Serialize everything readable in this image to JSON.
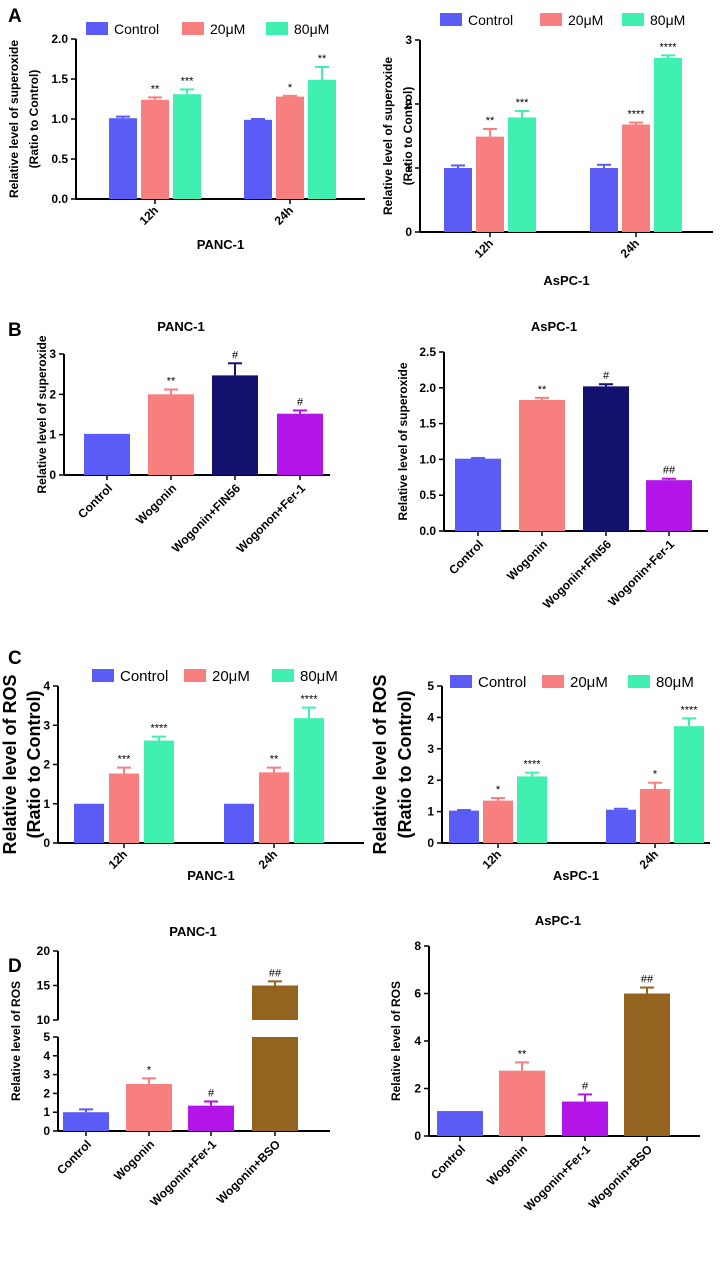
{
  "figure_labels": [
    "A",
    "B",
    "C",
    "D"
  ],
  "colors": {
    "control": "#5b5bf5",
    "c20": "#f77f7f",
    "c80": "#3ff0b0",
    "navy": "#12126e",
    "purple": "#b315e8",
    "brown": "#946320"
  },
  "chart_data": [
    {
      "id": "A1",
      "type": "bar",
      "panel": "A",
      "title": "",
      "xlabel": "PANC-1",
      "ylabel_lines": [
        "Relative level of superoxide",
        "(Ratio to Control)"
      ],
      "ylim": [
        0,
        2.0
      ],
      "yticks": [
        "0.0",
        "0.5",
        "1.0",
        "1.5",
        "2.0"
      ],
      "categories": [
        "12h",
        "24h"
      ],
      "legend": [
        "Control",
        "20μM",
        "80μM"
      ],
      "series": [
        {
          "name": "Control",
          "values": [
            1.01,
            0.99
          ],
          "errors": [
            0.02,
            0.01
          ],
          "labels": [
            "",
            ""
          ]
        },
        {
          "name": "20μM",
          "values": [
            1.24,
            1.28
          ],
          "errors": [
            0.03,
            0.01
          ],
          "labels": [
            "**",
            "*"
          ]
        },
        {
          "name": "80μM",
          "values": [
            1.31,
            1.49
          ],
          "errors": [
            0.06,
            0.16
          ],
          "labels": [
            "***",
            "**"
          ]
        }
      ]
    },
    {
      "id": "A2",
      "type": "bar",
      "panel": "A",
      "title": "",
      "xlabel": "AsPC-1",
      "ylabel_lines": [
        "Relative level of superoxide",
        "(Ratio to Control)"
      ],
      "ylim": [
        0,
        3
      ],
      "yticks": [
        "0",
        "1",
        "2",
        "3"
      ],
      "categories": [
        "12h",
        "24h"
      ],
      "legend": [
        "Control",
        "20μM",
        "80μM"
      ],
      "series": [
        {
          "name": "Control",
          "values": [
            1.0,
            1.0
          ],
          "errors": [
            0.04,
            0.05
          ],
          "labels": [
            "",
            ""
          ]
        },
        {
          "name": "20μM",
          "values": [
            1.49,
            1.68
          ],
          "errors": [
            0.12,
            0.03
          ],
          "labels": [
            "**",
            "****"
          ]
        },
        {
          "name": "80μM",
          "values": [
            1.79,
            2.72
          ],
          "errors": [
            0.1,
            0.04
          ],
          "labels": [
            "***",
            "****"
          ]
        }
      ]
    },
    {
      "id": "B1",
      "type": "bar",
      "panel": "B",
      "title": "PANC-1",
      "xlabel": "",
      "ylabel_lines": [
        "Relative level of superoxide"
      ],
      "ylim": [
        0,
        3
      ],
      "yticks": [
        "0",
        "1",
        "2",
        "3"
      ],
      "categories": [
        "Control",
        "Wogonin",
        "Wogonin+FIN56",
        "Wogonon+Fer-1"
      ],
      "values": [
        1.02,
        2.0,
        2.47,
        1.52
      ],
      "errors": [
        0.0,
        0.12,
        0.3,
        0.08
      ],
      "labels": [
        "",
        "**",
        "#",
        "#"
      ],
      "bar_colors": [
        "control",
        "c20",
        "navy",
        "purple"
      ]
    },
    {
      "id": "B2",
      "type": "bar",
      "panel": "B",
      "title": "AsPC-1",
      "xlabel": "",
      "ylabel_lines": [
        "Relative level of superoxide"
      ],
      "ylim": [
        0,
        2.5
      ],
      "yticks": [
        "0.0",
        "0.5",
        "1.0",
        "1.5",
        "2.0",
        "2.5"
      ],
      "categories": [
        "Control",
        "Wogonin",
        "Wogonin+FIN56",
        "Wogonin+Fer-1"
      ],
      "values": [
        1.01,
        1.83,
        2.02,
        0.71
      ],
      "errors": [
        0.01,
        0.03,
        0.03,
        0.02
      ],
      "labels": [
        "",
        "**",
        "#",
        "##"
      ],
      "bar_colors": [
        "control",
        "c20",
        "navy",
        "purple"
      ]
    },
    {
      "id": "C1",
      "type": "bar",
      "panel": "C",
      "title": "",
      "xlabel": "PANC-1",
      "ylabel_lines": [
        "Relative level of ROS",
        "(Ratio to Control)"
      ],
      "ylim": [
        0,
        4
      ],
      "yticks": [
        "0",
        "1",
        "2",
        "3",
        "4"
      ],
      "categories": [
        "12h",
        "24h"
      ],
      "legend": [
        "Control",
        "20μM",
        "80μM"
      ],
      "series": [
        {
          "name": "Control",
          "values": [
            1.0,
            1.0
          ],
          "errors": [
            0.0,
            0.0
          ],
          "labels": [
            "",
            ""
          ]
        },
        {
          "name": "20μM",
          "values": [
            1.77,
            1.8
          ],
          "errors": [
            0.15,
            0.12
          ],
          "labels": [
            "***",
            "**"
          ]
        },
        {
          "name": "80μM",
          "values": [
            2.61,
            3.18
          ],
          "errors": [
            0.1,
            0.27
          ],
          "labels": [
            "****",
            "****"
          ]
        }
      ]
    },
    {
      "id": "C2",
      "type": "bar",
      "panel": "C",
      "title": "",
      "xlabel": "AsPC-1",
      "ylabel_lines": [
        "Relative level of ROS",
        "(Ratio to Control)"
      ],
      "ylim": [
        0,
        5
      ],
      "yticks": [
        "0",
        "1",
        "2",
        "3",
        "4",
        "5"
      ],
      "categories": [
        "12h",
        "24h"
      ],
      "legend": [
        "Control",
        "20μM",
        "80μM"
      ],
      "series": [
        {
          "name": "Control",
          "values": [
            1.03,
            1.06
          ],
          "errors": [
            0.02,
            0.03
          ],
          "labels": [
            "",
            ""
          ]
        },
        {
          "name": "20μM",
          "values": [
            1.35,
            1.72
          ],
          "errors": [
            0.08,
            0.2
          ],
          "labels": [
            "*",
            "*"
          ]
        },
        {
          "name": "80μM",
          "values": [
            2.12,
            3.72
          ],
          "errors": [
            0.12,
            0.25
          ],
          "labels": [
            "****",
            "****"
          ]
        }
      ]
    },
    {
      "id": "D1",
      "type": "bar",
      "panel": "D",
      "title": "PANC-1",
      "xlabel": "",
      "ylabel_lines": [
        "Relative level of ROS"
      ],
      "ylim": [
        0,
        20
      ],
      "axis_break": [
        5,
        10
      ],
      "yticks": [
        "0",
        "1",
        "2",
        "3",
        "4",
        "5",
        "10",
        "15",
        "20"
      ],
      "categories": [
        "Control",
        "Wogonin",
        "Wogonin+Fer-1",
        "Wogonin+BSO"
      ],
      "values": [
        1.0,
        2.5,
        1.35,
        15.0
      ],
      "errors": [
        0.15,
        0.3,
        0.22,
        0.6
      ],
      "labels": [
        "",
        "*",
        "#",
        "##"
      ],
      "bar_colors": [
        "control",
        "c20",
        "purple",
        "brown"
      ]
    },
    {
      "id": "D2",
      "type": "bar",
      "panel": "D",
      "title": "AsPC-1",
      "xlabel": "",
      "ylabel_lines": [
        "Relative level of ROS"
      ],
      "ylim": [
        0,
        8
      ],
      "yticks": [
        "0",
        "2",
        "4",
        "6",
        "8"
      ],
      "categories": [
        "Control",
        "Wogonin",
        "Wogonin+Fer-1",
        "Wogonin+BSO"
      ],
      "values": [
        1.05,
        2.75,
        1.45,
        6.0
      ],
      "errors": [
        0.0,
        0.35,
        0.3,
        0.25
      ],
      "labels": [
        "",
        "**",
        "#",
        "##"
      ],
      "bar_colors": [
        "control",
        "c20",
        "purple",
        "brown"
      ]
    }
  ]
}
